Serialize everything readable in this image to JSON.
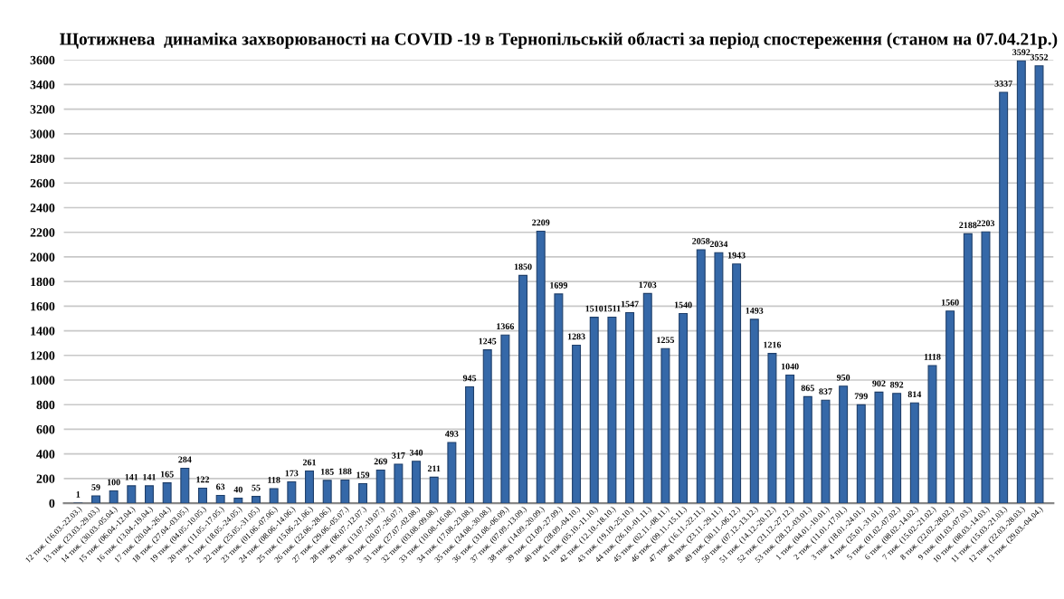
{
  "chart_data": {
    "type": "bar",
    "title": "Щотижнева  динаміка захворюваності на COVID -19 в Тернопільській області за період спостереження (станом на 07.04.21р.)",
    "categories": [
      "12 тиж. (16.03.-22.03.)",
      "13 тиж. (23.03.-29.03.)",
      "14 тиж. (30.03.-05.04.)",
      "15 тиж. (06.04.-12.04.)",
      "16 тиж. (13.04.-19.04.)",
      "17 тиж. (20.04.-26.04.)",
      "18 тиж. (27.04.-03.05.)",
      "19 тиж. (04.05.-10.05.)",
      "20 тиж. (11.05.-17.05.)",
      "21 тиж. (18.05.-24.05.)",
      "22 тиж. (25.05.-31.05.)",
      "23 тиж. (01.06.-07.06.)",
      "24 тиж. (08.06.-14.06.)",
      "25 тиж. (15.06.-21.06.)",
      "26 тиж. (22.06.-28.06.)",
      "27 тиж. (29.06.-05.07.)",
      "28 тиж. (06.07.-12.07.)",
      "29 тиж. (13.07.-19.07.)",
      "30 тиж. (20.07.-26.07.)",
      "31 тиж. (27.07.-02.08.)",
      "32 тиж. (03.08.-09.08.)",
      "33 тиж. (10.08.-16.08.)",
      "34 тиж. (17.08.-23.08.)",
      "35 тиж. (24.08.-30.08.)",
      "36 тиж. (31.08.-06.09.)",
      "37 тиж. (07.09.-13.09.)",
      "38 тиж. (14.09.-20.09.)",
      "39 тиж. (21.09.-27.09.)",
      "40 тиж. (28.09.-04.10.)",
      "41 тиж. (05.10.-11.10.)",
      "42 тиж. (12.10.-18.10.)",
      "43 тиж. (19.10.-25.10.)",
      "44 тиж. (26.10.-01.11.)",
      "45 тиж. (02.11.-08.11.)",
      "46 тиж. (09.11.-15.11.)",
      "47 тиж. (16.11.-22.11.)",
      "48 тиж. (23.11.-29.11.)",
      "49 тиж. (30.11.-06.12.)",
      "50 тиж. (07.12.-13.12.)",
      "51 тиж. (14.12.-20.12.)",
      "52 тиж. (21.12.-27.12.)",
      "53 тиж. (28.12.-03.01.)",
      "1 тиж. (04.01.-10.01.)",
      "2 тиж. (11.01.-17.01.)",
      "3 тиж. (18.01.-24.01.)",
      "4 тиж. (25.01.-31.01.)",
      "5 тиж. (01.02.-07.02.)",
      "6 тиж. (08.02.-14.02.)",
      "7 тиж. (15.02.-21.02.)",
      "8 тиж. (22.02.-28.02.)",
      "9 тиж. (01.03.-07.03.)",
      "10 тиж. (08.03.-14.03.)",
      "11 тиж. (15.03.-21.03.)",
      "12 тиж. (22.03.-28.03.)",
      "13 тиж. (29.03.-04.04.)"
    ],
    "values": [
      1,
      59,
      100,
      141,
      141,
      165,
      284,
      122,
      63,
      40,
      55,
      118,
      173,
      261,
      185,
      188,
      159,
      269,
      317,
      340,
      211,
      493,
      945,
      1245,
      1366,
      1850,
      2209,
      1699,
      1283,
      1510,
      1511,
      1547,
      1703,
      1255,
      1540,
      2058,
      2034,
      1943,
      1493,
      1216,
      1040,
      865,
      837,
      950,
      799,
      902,
      892,
      814,
      1118,
      1560,
      2188,
      2203,
      3337,
      3592,
      3552
    ],
    "color": "#3568a8",
    "ylim": [
      0,
      3600
    ],
    "yticks": [
      0,
      200,
      400,
      600,
      800,
      1000,
      1200,
      1400,
      1600,
      1800,
      2000,
      2200,
      2400,
      2600,
      2800,
      3000,
      3200,
      3400,
      3600
    ],
    "grid": "y",
    "data_labels": true
  }
}
